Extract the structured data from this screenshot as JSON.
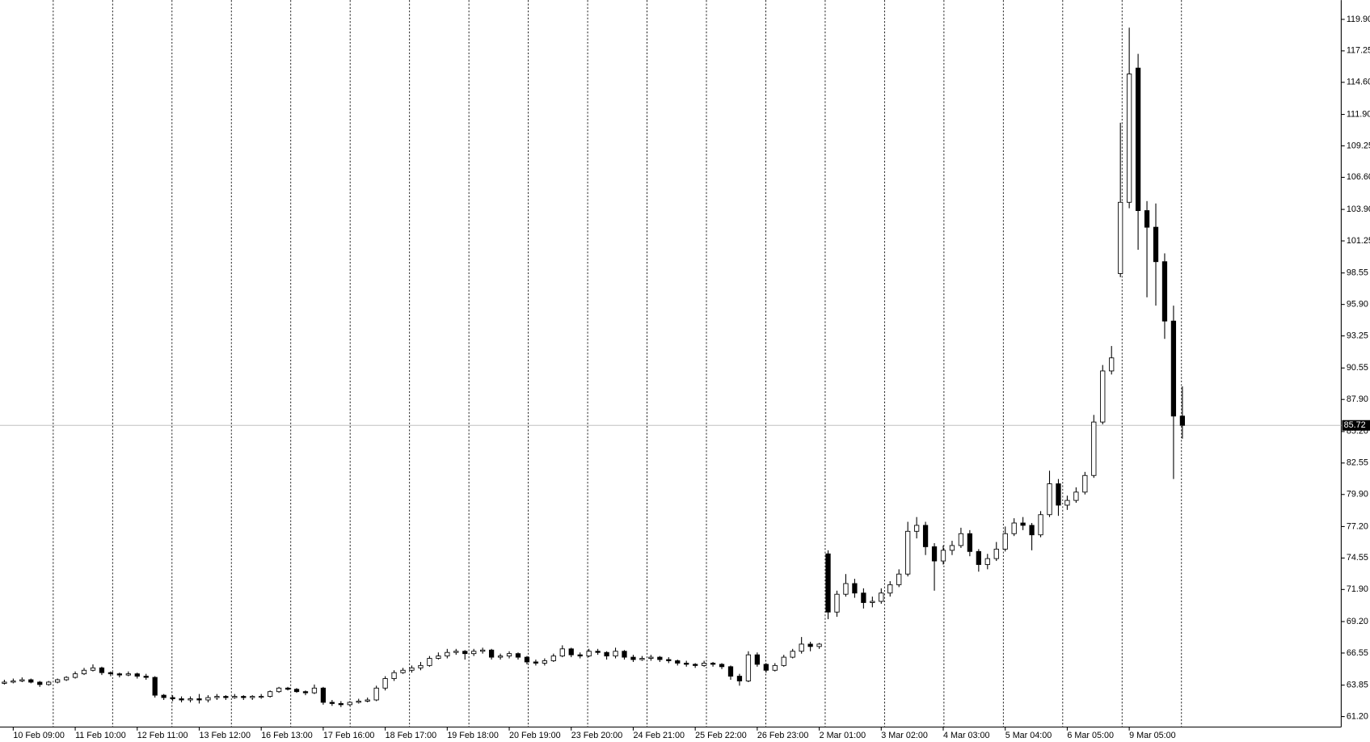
{
  "chart_data": {
    "type": "candlestick",
    "categories": [
      null,
      "10 Feb 09:00",
      null,
      null,
      null,
      null,
      null,
      null,
      "11 Feb 10:00",
      null,
      null,
      null,
      null,
      null,
      null,
      "12 Feb 11:00",
      null,
      null,
      null,
      null,
      null,
      null,
      "13 Feb 12:00",
      null,
      null,
      null,
      null,
      null,
      null,
      "16 Feb 13:00",
      null,
      null,
      null,
      null,
      null,
      null,
      "17 Feb 16:00",
      null,
      null,
      null,
      null,
      null,
      null,
      "18 Feb 17:00",
      null,
      null,
      null,
      null,
      null,
      null,
      "19 Feb 18:00",
      null,
      null,
      null,
      null,
      null,
      null,
      "20 Feb 19:00",
      null,
      null,
      null,
      null,
      null,
      null,
      "23 Feb 20:00",
      null,
      null,
      null,
      null,
      null,
      null,
      "24 Feb 21:00",
      null,
      null,
      null,
      null,
      null,
      null,
      "25 Feb 22:00",
      null,
      null,
      null,
      null,
      null,
      null,
      "26 Feb 23:00",
      null,
      null,
      null,
      null,
      null,
      null,
      "2 Mar 01:00",
      null,
      null,
      null,
      null,
      null,
      null,
      "3 Mar 02:00",
      null,
      null,
      null,
      null,
      null,
      null,
      "4 Mar 03:00",
      null,
      null,
      null,
      null,
      null,
      null,
      "5 Mar 04:00",
      null,
      null,
      null,
      null,
      null,
      null,
      "6 Mar 05:00",
      null,
      null,
      null,
      null,
      null,
      null,
      "9 Mar 05:00",
      null,
      null,
      null,
      null,
      null,
      null
    ],
    "ohlc": [
      [
        64.0,
        64.3,
        63.9,
        64.1
      ],
      [
        64.1,
        64.4,
        64.0,
        64.2
      ],
      [
        64.2,
        64.5,
        64.1,
        64.3
      ],
      [
        64.3,
        64.4,
        64.0,
        64.1
      ],
      [
        64.1,
        64.2,
        63.7,
        63.9
      ],
      [
        63.9,
        64.2,
        63.8,
        64.1
      ],
      [
        64.1,
        64.4,
        64.0,
        64.3
      ],
      [
        64.3,
        64.6,
        64.2,
        64.5
      ],
      [
        64.5,
        65.0,
        64.4,
        64.8
      ],
      [
        64.8,
        65.3,
        64.7,
        65.1
      ],
      [
        65.1,
        65.6,
        65.0,
        65.3
      ],
      [
        65.3,
        65.4,
        64.7,
        64.9
      ],
      [
        64.9,
        65.0,
        64.6,
        64.8
      ],
      [
        64.8,
        64.9,
        64.5,
        64.7
      ],
      [
        64.7,
        65.0,
        64.6,
        64.8
      ],
      [
        64.8,
        64.9,
        64.4,
        64.6
      ],
      [
        64.6,
        64.8,
        64.3,
        64.5
      ],
      [
        64.5,
        64.6,
        62.8,
        63.0
      ],
      [
        63.0,
        63.1,
        62.6,
        62.8
      ],
      [
        62.8,
        63.0,
        62.5,
        62.7
      ],
      [
        62.7,
        62.9,
        62.4,
        62.6
      ],
      [
        62.6,
        62.9,
        62.4,
        62.7
      ],
      [
        62.7,
        63.1,
        62.3,
        62.6
      ],
      [
        62.6,
        63.0,
        62.4,
        62.8
      ],
      [
        62.8,
        63.1,
        62.6,
        62.9
      ],
      [
        62.9,
        63.0,
        62.6,
        62.8
      ],
      [
        62.8,
        63.1,
        62.7,
        62.9
      ],
      [
        62.9,
        63.0,
        62.6,
        62.8
      ],
      [
        62.8,
        63.0,
        62.6,
        62.9
      ],
      [
        62.9,
        63.1,
        62.7,
        62.9
      ],
      [
        62.9,
        63.4,
        62.8,
        63.3
      ],
      [
        63.3,
        63.7,
        63.2,
        63.6
      ],
      [
        63.6,
        63.7,
        63.4,
        63.5
      ],
      [
        63.5,
        63.6,
        63.2,
        63.3
      ],
      [
        63.3,
        63.4,
        63.0,
        63.2
      ],
      [
        63.2,
        63.9,
        63.1,
        63.6
      ],
      [
        63.6,
        63.7,
        62.2,
        62.4
      ],
      [
        62.4,
        62.6,
        62.1,
        62.3
      ],
      [
        62.3,
        62.5,
        62.0,
        62.2
      ],
      [
        62.2,
        62.5,
        62.1,
        62.4
      ],
      [
        62.4,
        62.7,
        62.3,
        62.5
      ],
      [
        62.5,
        62.8,
        62.4,
        62.6
      ],
      [
        62.6,
        63.8,
        62.5,
        63.6
      ],
      [
        63.6,
        64.6,
        63.4,
        64.4
      ],
      [
        64.4,
        65.1,
        64.2,
        64.9
      ],
      [
        64.9,
        65.3,
        64.8,
        65.1
      ],
      [
        65.1,
        65.5,
        64.9,
        65.3
      ],
      [
        65.3,
        65.8,
        65.1,
        65.5
      ],
      [
        65.5,
        66.3,
        65.4,
        66.1
      ],
      [
        66.1,
        66.6,
        66.0,
        66.3
      ],
      [
        66.3,
        66.9,
        66.1,
        66.6
      ],
      [
        66.6,
        66.9,
        66.4,
        66.7
      ],
      [
        66.7,
        66.8,
        66.0,
        66.5
      ],
      [
        66.5,
        66.9,
        66.3,
        66.7
      ],
      [
        66.7,
        67.0,
        66.5,
        66.8
      ],
      [
        66.8,
        66.9,
        66.0,
        66.2
      ],
      [
        66.2,
        66.5,
        66.0,
        66.3
      ],
      [
        66.3,
        66.7,
        66.1,
        66.5
      ],
      [
        66.5,
        66.6,
        66.0,
        66.2
      ],
      [
        66.2,
        66.3,
        65.6,
        65.8
      ],
      [
        65.8,
        66.0,
        65.5,
        65.7
      ],
      [
        65.7,
        66.1,
        65.5,
        65.9
      ],
      [
        65.9,
        66.5,
        65.8,
        66.3
      ],
      [
        66.3,
        67.2,
        66.2,
        66.9
      ],
      [
        66.9,
        67.0,
        66.2,
        66.4
      ],
      [
        66.4,
        66.6,
        66.1,
        66.3
      ],
      [
        66.3,
        66.9,
        66.2,
        66.7
      ],
      [
        66.7,
        66.9,
        66.4,
        66.6
      ],
      [
        66.6,
        66.7,
        66.0,
        66.3
      ],
      [
        66.3,
        67.0,
        66.1,
        66.7
      ],
      [
        66.7,
        66.8,
        66.0,
        66.2
      ],
      [
        66.2,
        66.4,
        65.8,
        66.0
      ],
      [
        66.0,
        66.3,
        65.9,
        66.1
      ],
      [
        66.1,
        66.4,
        65.9,
        66.2
      ],
      [
        66.2,
        66.3,
        65.8,
        66.0
      ],
      [
        66.0,
        66.2,
        65.7,
        65.9
      ],
      [
        65.9,
        66.0,
        65.5,
        65.7
      ],
      [
        65.7,
        65.9,
        65.4,
        65.6
      ],
      [
        65.6,
        65.7,
        65.3,
        65.5
      ],
      [
        65.5,
        65.9,
        65.4,
        65.7
      ],
      [
        65.7,
        65.8,
        65.4,
        65.6
      ],
      [
        65.6,
        65.7,
        65.2,
        65.4
      ],
      [
        65.4,
        65.5,
        64.3,
        64.6
      ],
      [
        64.6,
        64.8,
        63.8,
        64.2
      ],
      [
        64.2,
        66.7,
        64.1,
        66.4
      ],
      [
        66.4,
        66.6,
        65.4,
        65.6
      ],
      [
        65.6,
        65.7,
        64.9,
        65.1
      ],
      [
        65.1,
        65.7,
        65.0,
        65.5
      ],
      [
        65.5,
        66.4,
        65.4,
        66.2
      ],
      [
        66.2,
        66.9,
        66.1,
        66.7
      ],
      [
        66.7,
        67.9,
        66.5,
        67.3
      ],
      [
        67.3,
        67.5,
        66.7,
        67.1
      ],
      [
        67.1,
        67.4,
        66.9,
        67.3
      ],
      [
        74.9,
        75.2,
        69.4,
        70.0
      ],
      [
        70.0,
        71.8,
        69.6,
        71.5
      ],
      [
        71.5,
        73.2,
        71.3,
        72.4
      ],
      [
        72.4,
        72.8,
        71.2,
        71.6
      ],
      [
        71.6,
        72.0,
        70.3,
        70.8
      ],
      [
        70.8,
        71.3,
        70.4,
        70.9
      ],
      [
        70.9,
        72.0,
        70.7,
        71.6
      ],
      [
        71.6,
        72.6,
        71.3,
        72.3
      ],
      [
        72.3,
        73.6,
        72.1,
        73.2
      ],
      [
        73.2,
        77.6,
        73.0,
        76.8
      ],
      [
        76.8,
        78.0,
        76.2,
        77.3
      ],
      [
        77.3,
        77.6,
        74.8,
        75.5
      ],
      [
        75.5,
        75.8,
        71.8,
        74.3
      ],
      [
        74.3,
        75.6,
        74.0,
        75.2
      ],
      [
        75.2,
        76.0,
        74.8,
        75.6
      ],
      [
        75.6,
        77.1,
        75.4,
        76.6
      ],
      [
        76.6,
        76.9,
        74.7,
        75.1
      ],
      [
        75.1,
        75.3,
        73.4,
        74.0
      ],
      [
        74.0,
        74.9,
        73.6,
        74.5
      ],
      [
        74.5,
        75.9,
        74.3,
        75.3
      ],
      [
        75.3,
        77.2,
        75.1,
        76.6
      ],
      [
        76.6,
        77.9,
        76.4,
        77.5
      ],
      [
        77.5,
        78.0,
        76.9,
        77.3
      ],
      [
        77.3,
        77.5,
        75.2,
        76.5
      ],
      [
        76.5,
        78.5,
        76.3,
        78.2
      ],
      [
        78.2,
        81.9,
        78.0,
        80.8
      ],
      [
        80.8,
        81.2,
        78.1,
        79.0
      ],
      [
        79.0,
        79.8,
        78.6,
        79.4
      ],
      [
        79.4,
        80.5,
        79.2,
        80.1
      ],
      [
        80.1,
        81.8,
        79.9,
        81.5
      ],
      [
        81.5,
        86.6,
        81.3,
        86.0
      ],
      [
        86.0,
        90.8,
        85.8,
        90.3
      ],
      [
        90.3,
        92.4,
        90.0,
        91.4
      ],
      [
        98.5,
        111.2,
        98.2,
        104.5
      ],
      [
        104.5,
        119.2,
        104.0,
        115.3
      ],
      [
        115.8,
        117.0,
        100.5,
        103.8
      ],
      [
        103.8,
        104.6,
        96.5,
        102.4
      ],
      [
        102.4,
        104.4,
        95.8,
        99.5
      ],
      [
        99.5,
        100.2,
        93.0,
        94.5
      ],
      [
        94.5,
        95.8,
        81.2,
        86.5
      ],
      [
        86.5,
        89.0,
        84.6,
        85.72
      ]
    ],
    "up_color": "#ffffff",
    "down_color": "#000000",
    "outline_color": "#000000",
    "ylim": [
      60.32,
      121.52
    ],
    "yticks": [
      {
        "value": 61.2,
        "label": "61.20"
      },
      63.85,
      66.55,
      {
        "value": 69.2,
        "label": "69.20"
      },
      {
        "value": 71.9,
        "label": "71.90"
      },
      74.55,
      {
        "value": 77.2,
        "label": "77.20"
      },
      {
        "value": 79.9,
        "label": "79.90"
      },
      82.55,
      {
        "value": 85.2,
        "label": "85.20"
      },
      {
        "value": 87.9,
        "label": "87.90"
      },
      90.55,
      93.25,
      {
        "value": 95.9,
        "label": "95.90"
      },
      98.55,
      101.25,
      {
        "value": 103.9,
        "label": "103.90"
      },
      {
        "value": 106.6,
        "label": "106.60"
      },
      109.25,
      {
        "value": 111.9,
        "label": "111.90"
      },
      {
        "value": 114.6,
        "label": "114.60"
      },
      117.25,
      {
        "value": 119.9,
        "label": "119.90"
      }
    ],
    "last_price": 85.72,
    "grid": true
  }
}
